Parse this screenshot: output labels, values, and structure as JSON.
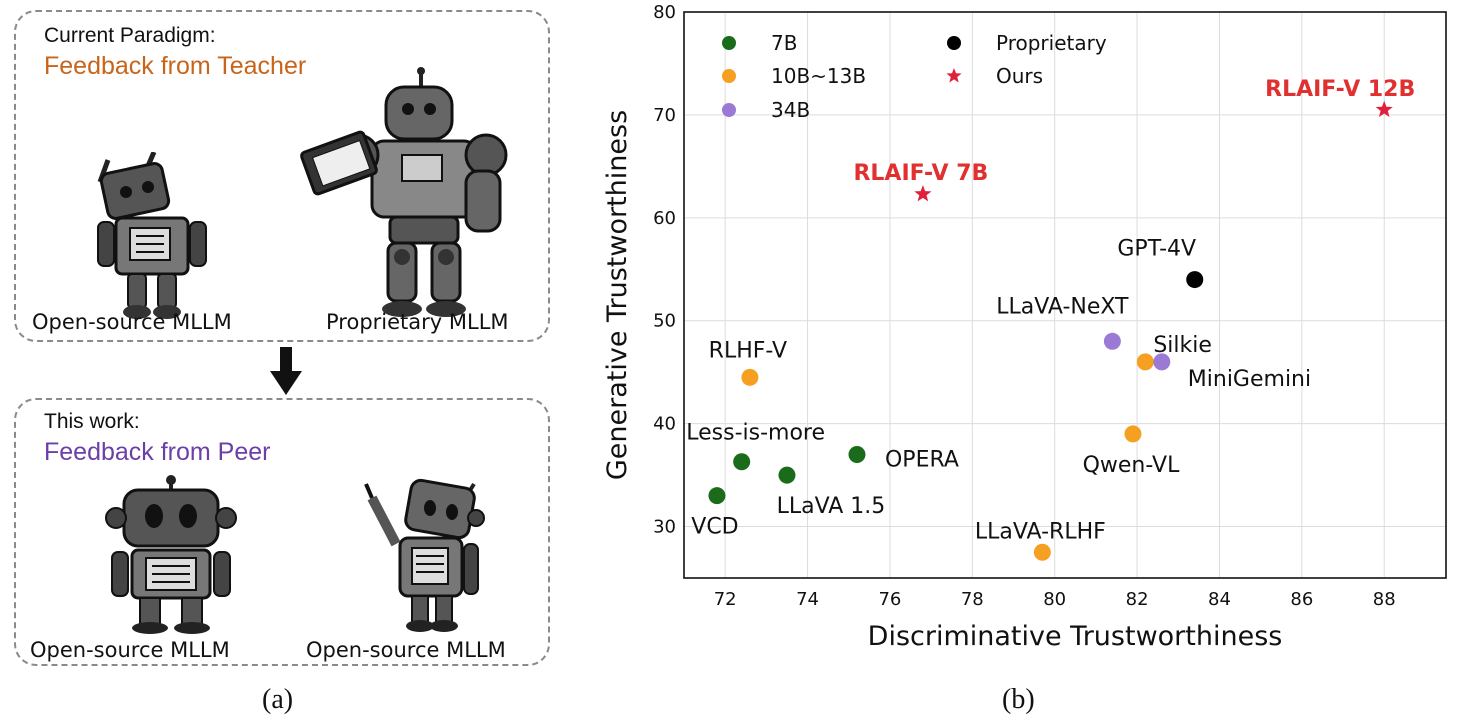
{
  "panel_a": {
    "top_box": {
      "label": "Current Paradigm:",
      "title": "Feedback from Teacher",
      "title_color": "#c8651b",
      "left_robot": "Open-source MLLM",
      "right_robot": "Proprietary MLLM"
    },
    "bottom_box": {
      "label": "This work:",
      "title": "Feedback from Peer",
      "title_color": "#6b3fa8",
      "left_robot": "Open-source MLLM",
      "right_robot": "Open-source MLLM"
    },
    "caption": "(a)"
  },
  "panel_b": {
    "caption": "(b)"
  },
  "chart_data": {
    "type": "scatter",
    "xlabel": "Discriminative Trustworthiness",
    "ylabel": "Generative Trustworthiness",
    "xlim": [
      71,
      89.5
    ],
    "ylim": [
      25,
      80
    ],
    "xticks": [
      72,
      74,
      76,
      78,
      80,
      82,
      84,
      86,
      88
    ],
    "yticks": [
      30,
      40,
      50,
      60,
      70,
      80
    ],
    "grid": true,
    "legend_placement": "top-left",
    "legend": [
      {
        "name": "7B",
        "color": "#1a6b1a",
        "marker": "circle"
      },
      {
        "name": "10B~13B",
        "color": "#f5a020",
        "marker": "circle"
      },
      {
        "name": "34B",
        "color": "#9b7ad6",
        "marker": "circle"
      },
      {
        "name": "Proprietary",
        "color": "#000000",
        "marker": "circle"
      },
      {
        "name": "Ours",
        "color": "#e0203a",
        "marker": "star"
      }
    ],
    "points": [
      {
        "label": "VCD",
        "x": 71.8,
        "y": 33.0,
        "group": "7B",
        "color": "#1a6b1a",
        "marker": "circle",
        "label_color": "#111111",
        "bold": false
      },
      {
        "label": "Less-is-more",
        "x": 72.4,
        "y": 36.3,
        "group": "7B",
        "color": "#1a6b1a",
        "marker": "circle",
        "label_color": "#111111",
        "bold": false
      },
      {
        "label": "LLaVA 1.5",
        "x": 73.5,
        "y": 35.0,
        "group": "7B",
        "color": "#1a6b1a",
        "marker": "circle",
        "label_color": "#111111",
        "bold": false
      },
      {
        "label": "OPERA",
        "x": 75.2,
        "y": 37.0,
        "group": "7B",
        "color": "#1a6b1a",
        "marker": "circle",
        "label_color": "#111111",
        "bold": false
      },
      {
        "label": "RLHF-V",
        "x": 72.6,
        "y": 44.5,
        "group": "10B~13B",
        "color": "#f5a020",
        "marker": "circle",
        "label_color": "#111111",
        "bold": false
      },
      {
        "label": "LLaVA-RLHF",
        "x": 79.7,
        "y": 27.5,
        "group": "10B~13B",
        "color": "#f5a020",
        "marker": "circle",
        "label_color": "#111111",
        "bold": false
      },
      {
        "label": "Qwen-VL",
        "x": 81.9,
        "y": 39.0,
        "group": "10B~13B",
        "color": "#f5a020",
        "marker": "circle",
        "label_color": "#111111",
        "bold": false
      },
      {
        "label": "Silkie",
        "x": 82.2,
        "y": 46.0,
        "group": "10B~13B",
        "color": "#f5a020",
        "marker": "circle",
        "label_color": "#111111",
        "bold": false
      },
      {
        "label": "LLaVA-NeXT",
        "x": 81.4,
        "y": 48.0,
        "group": "34B",
        "color": "#9b7ad6",
        "marker": "circle",
        "label_color": "#111111",
        "bold": false
      },
      {
        "label": "MiniGemini",
        "x": 82.6,
        "y": 46.0,
        "group": "34B",
        "color": "#9b7ad6",
        "marker": "circle",
        "label_color": "#111111",
        "bold": false
      },
      {
        "label": "GPT-4V",
        "x": 83.4,
        "y": 54.0,
        "group": "Proprietary",
        "color": "#000000",
        "marker": "circle",
        "label_color": "#111111",
        "bold": false
      },
      {
        "label": "RLAIF-V 7B",
        "x": 76.8,
        "y": 62.3,
        "group": "Ours",
        "color": "#e0203a",
        "marker": "star",
        "label_color": "#e03030",
        "bold": true
      },
      {
        "label": "RLAIF-V 12B",
        "x": 88.0,
        "y": 70.5,
        "group": "Ours",
        "color": "#e0203a",
        "marker": "star",
        "label_color": "#e03030",
        "bold": true
      }
    ]
  }
}
